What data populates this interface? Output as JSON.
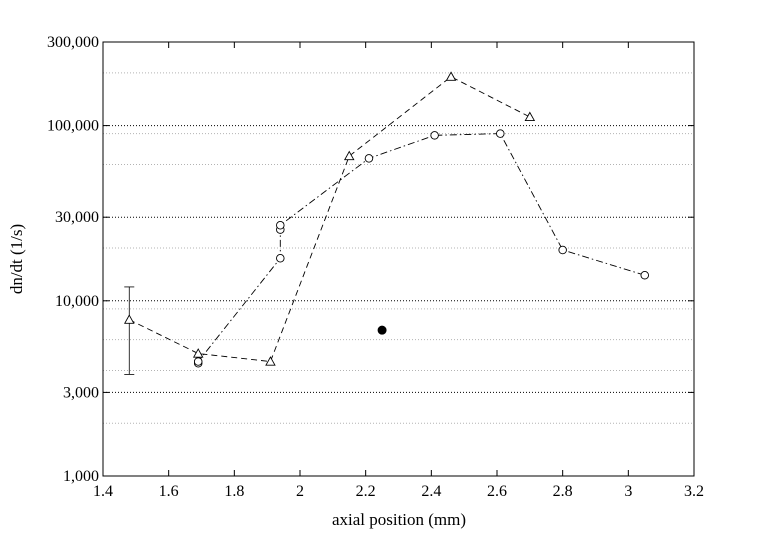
{
  "chart_data": {
    "type": "scatter",
    "title": "",
    "xlabel": "axial position (mm)",
    "ylabel": "dn/dt (1/s)",
    "xlim": [
      1.4,
      3.2
    ],
    "ylim": [
      1000,
      300000
    ],
    "yscale": "log",
    "x_ticks": [
      1.4,
      1.6,
      1.8,
      2,
      2.2,
      2.4,
      2.6,
      2.8,
      3,
      3.2
    ],
    "x_tick_labels": [
      "1.4",
      "1.6",
      "1.8",
      "2",
      "2.2",
      "2.4",
      "2.6",
      "2.8",
      "3",
      "3.2"
    ],
    "y_ticks": [
      1000,
      3000,
      10000,
      30000,
      100000,
      300000
    ],
    "y_tick_labels": [
      "1,000",
      "3,000",
      "10,000",
      "30,000",
      "100,000",
      "300,000"
    ],
    "grid": {
      "major_y": [
        1000,
        3000,
        10000,
        30000,
        100000,
        300000
      ],
      "minor_y": [
        2000,
        4000,
        6000,
        9000,
        20000,
        60000,
        90000,
        200000
      ],
      "style": "dotted"
    },
    "legend": "none",
    "series": [
      {
        "marker": "triangle",
        "line_style": "dashed",
        "points": [
          {
            "x": 1.48,
            "y": 7800
          },
          {
            "x": 1.69,
            "y": 5000
          },
          {
            "x": 1.91,
            "y": 4500
          },
          {
            "x": 2.15,
            "y": 67000
          },
          {
            "x": 2.46,
            "y": 190000
          },
          {
            "x": 2.7,
            "y": 112000
          }
        ],
        "error_bars": [
          {
            "x": 1.48,
            "low": 3800,
            "high": 12000
          }
        ]
      },
      {
        "marker": "circle",
        "line_style": "dash-dot",
        "points": [
          {
            "x": 1.69,
            "y": 4400
          },
          {
            "x": 1.69,
            "y": 4500
          },
          {
            "x": 1.94,
            "y": 17500
          },
          {
            "x": 1.94,
            "y": 25500
          },
          {
            "x": 1.94,
            "y": 27000
          },
          {
            "x": 2.21,
            "y": 65000
          },
          {
            "x": 2.41,
            "y": 88000
          },
          {
            "x": 2.61,
            "y": 90000
          },
          {
            "x": 2.8,
            "y": 19500
          },
          {
            "x": 3.05,
            "y": 14000
          }
        ]
      },
      {
        "marker": "filled-circle",
        "line_style": "none",
        "points": [
          {
            "x": 2.25,
            "y": 6800
          }
        ]
      }
    ]
  }
}
